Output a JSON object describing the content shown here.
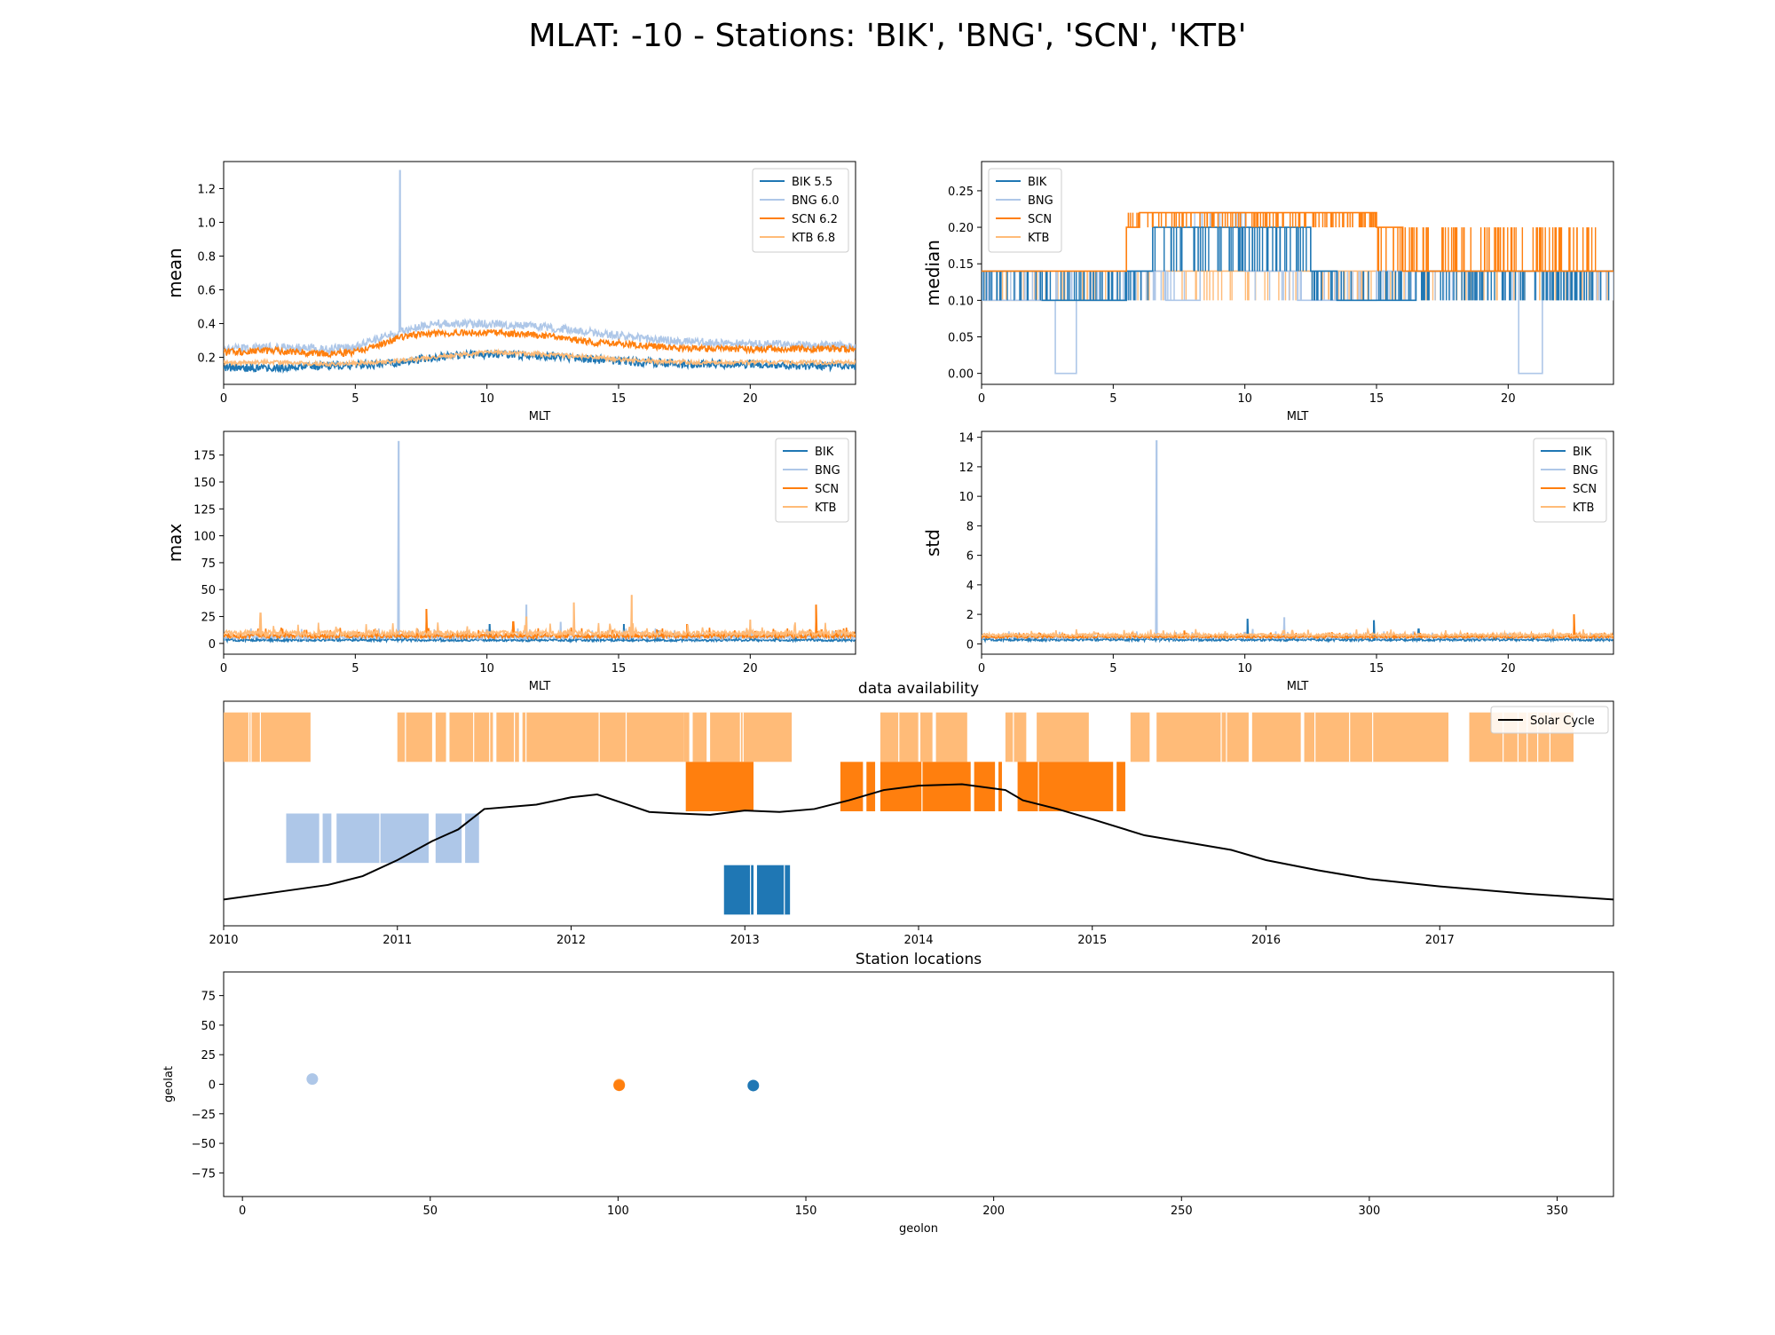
{
  "figure": {
    "title": "MLAT: -10 - Stations: 'BIK', 'BNG', 'SCN', 'KTB'"
  },
  "colors": {
    "BIK": "#1f77b4",
    "BNG": "#aec7e8",
    "SCN": "#ff7f0e",
    "KTB": "#ffbb78",
    "solar": "#000000"
  },
  "chart_data": [
    {
      "id": "mean",
      "type": "line",
      "title": "",
      "xlabel": "MLT",
      "ylabel": "mean",
      "xlim": [
        0,
        24
      ],
      "ylim": [
        0.04,
        1.36
      ],
      "xticks": [
        0,
        5,
        10,
        15,
        20
      ],
      "yticks": [
        0.2,
        0.4,
        0.6,
        0.8,
        1.0,
        1.2
      ],
      "ytick_labels": [
        "0.2",
        "0.4",
        "0.6",
        "0.8",
        "1.0",
        "1.2"
      ],
      "legend": "top-right",
      "legend_entries": [
        "BIK 5.5",
        "BNG 6.0",
        "SCN 6.2",
        "KTB 6.8"
      ],
      "series": [
        {
          "name": "BIK",
          "x": [
            0,
            2,
            4,
            6,
            8,
            10,
            12,
            14,
            16,
            18,
            20,
            22,
            24
          ],
          "values": [
            0.14,
            0.14,
            0.15,
            0.16,
            0.2,
            0.22,
            0.21,
            0.19,
            0.17,
            0.16,
            0.16,
            0.15,
            0.15
          ],
          "noise": 0.025
        },
        {
          "name": "BNG",
          "x": [
            0,
            2,
            4,
            5,
            6,
            7,
            8,
            10,
            12,
            14,
            16,
            18,
            20,
            22,
            24
          ],
          "values": [
            0.25,
            0.26,
            0.25,
            0.26,
            0.32,
            0.36,
            0.4,
            0.4,
            0.38,
            0.35,
            0.31,
            0.29,
            0.28,
            0.27,
            0.27
          ],
          "noise": 0.025,
          "spikes": [
            [
              6.7,
              1.31
            ]
          ]
        },
        {
          "name": "SCN",
          "x": [
            0,
            2,
            4,
            5,
            6,
            7,
            8,
            10,
            12,
            14,
            16,
            18,
            20,
            22,
            24
          ],
          "values": [
            0.23,
            0.24,
            0.22,
            0.23,
            0.28,
            0.33,
            0.34,
            0.35,
            0.33,
            0.29,
            0.27,
            0.25,
            0.25,
            0.25,
            0.25
          ],
          "noise": 0.02
        },
        {
          "name": "KTB",
          "x": [
            0,
            2,
            4,
            6,
            8,
            10,
            12,
            14,
            16,
            18,
            20,
            22,
            24
          ],
          "values": [
            0.17,
            0.17,
            0.16,
            0.17,
            0.2,
            0.23,
            0.22,
            0.2,
            0.18,
            0.17,
            0.17,
            0.17,
            0.17
          ],
          "noise": 0.012
        }
      ]
    },
    {
      "id": "median",
      "type": "line",
      "title": "",
      "xlabel": "MLT",
      "ylabel": "median",
      "xlim": [
        0,
        24
      ],
      "ylim": [
        -0.015,
        0.29
      ],
      "xticks": [
        0,
        5,
        10,
        15,
        20
      ],
      "yticks": [
        0.0,
        0.05,
        0.1,
        0.15,
        0.2,
        0.25
      ],
      "ytick_labels": [
        "0.00",
        "0.05",
        "0.10",
        "0.15",
        "0.20",
        "0.25"
      ],
      "legend": "top-left",
      "legend_entries": [
        "BIK",
        "BNG",
        "SCN",
        "KTB"
      ],
      "series": [
        {
          "name": "KTB",
          "segments": [
            [
              0,
              0.1
            ],
            [
              2.5,
              0.1
            ],
            [
              5.5,
              0.14
            ],
            [
              24,
              0.1
            ]
          ]
        },
        {
          "name": "BNG",
          "segments": [
            [
              0,
              0.1
            ],
            [
              2.8,
              0.0
            ],
            [
              3.6,
              0.1
            ],
            [
              5.5,
              0.14
            ],
            [
              7.0,
              0.1
            ],
            [
              8.3,
              0.22
            ],
            [
              10.0,
              0.14
            ],
            [
              12.0,
              0.1
            ],
            [
              15.0,
              0.14
            ],
            [
              20.4,
              0.0
            ],
            [
              21.3,
              0.14
            ]
          ]
        },
        {
          "name": "BIK",
          "segments": [
            [
              0,
              0.14
            ],
            [
              2.3,
              0.1
            ],
            [
              5.5,
              0.14
            ],
            [
              6.5,
              0.2
            ],
            [
              12.5,
              0.14
            ],
            [
              13.5,
              0.1
            ],
            [
              16.5,
              0.14
            ],
            [
              24,
              0.14
            ]
          ]
        },
        {
          "name": "SCN",
          "segments": [
            [
              0,
              0.14
            ],
            [
              5.5,
              0.2
            ],
            [
              6.0,
              0.22
            ],
            [
              15.0,
              0.2
            ],
            [
              16.0,
              0.14
            ],
            [
              24,
              0.14
            ]
          ]
        }
      ]
    },
    {
      "id": "max",
      "type": "line",
      "title": "",
      "xlabel": "MLT",
      "ylabel": "max",
      "xlim": [
        0,
        24
      ],
      "ylim": [
        -10,
        197
      ],
      "xticks": [
        0,
        5,
        10,
        15,
        20
      ],
      "yticks": [
        0,
        25,
        50,
        75,
        100,
        125,
        150,
        175
      ],
      "ytick_labels": [
        "0",
        "25",
        "50",
        "75",
        "100",
        "125",
        "150",
        "175"
      ],
      "legend": "top-right",
      "legend_entries": [
        "BIK",
        "BNG",
        "SCN",
        "KTB"
      ],
      "series": [
        {
          "name": "BIK",
          "base": 2,
          "noise": 2,
          "spikes": [
            [
              10.1,
              18
            ],
            [
              15.2,
              18
            ],
            [
              16.5,
              12
            ]
          ]
        },
        {
          "name": "BNG",
          "base": 4,
          "noise": 4,
          "spikes": [
            [
              6.65,
              188
            ],
            [
              11.5,
              36
            ],
            [
              12.8,
              20
            ]
          ]
        },
        {
          "name": "SCN",
          "base": 5,
          "noise": 4,
          "spikes": [
            [
              7.7,
              32
            ],
            [
              11.0,
              20
            ],
            [
              15.5,
              22
            ],
            [
              17.6,
              18
            ],
            [
              22.5,
              36
            ]
          ]
        },
        {
          "name": "KTB",
          "base": 7,
          "noise": 5,
          "spikes": [
            [
              1.4,
              28
            ],
            [
              13.3,
              38
            ],
            [
              15.5,
              45
            ],
            [
              11.5,
              25
            ],
            [
              20.0,
              22
            ]
          ]
        }
      ]
    },
    {
      "id": "std",
      "type": "line",
      "title": "",
      "xlabel": "MLT",
      "ylabel": "std",
      "xlim": [
        0,
        24
      ],
      "ylim": [
        -0.7,
        14.4
      ],
      "xticks": [
        0,
        5,
        10,
        15,
        20
      ],
      "yticks": [
        0,
        2,
        4,
        6,
        8,
        10,
        12,
        14
      ],
      "ytick_labels": [
        "0",
        "2",
        "4",
        "6",
        "8",
        "10",
        "12",
        "14"
      ],
      "legend": "top-right",
      "legend_entries": [
        "BIK",
        "BNG",
        "SCN",
        "KTB"
      ],
      "series": [
        {
          "name": "BIK",
          "base": 0.2,
          "noise": 0.15,
          "spikes": [
            [
              10.1,
              1.7
            ],
            [
              14.9,
              1.6
            ],
            [
              16.6,
              1.0
            ]
          ]
        },
        {
          "name": "BNG",
          "base": 0.35,
          "noise": 0.2,
          "spikes": [
            [
              6.65,
              13.8
            ],
            [
              11.5,
              1.8
            ],
            [
              10.3,
              1.0
            ]
          ]
        },
        {
          "name": "SCN",
          "base": 0.4,
          "noise": 0.15,
          "spikes": [
            [
              22.5,
              2.0
            ],
            [
              7.7,
              0.9
            ],
            [
              13.3,
              0.8
            ]
          ]
        },
        {
          "name": "KTB",
          "base": 0.5,
          "noise": 0.2,
          "spikes": [
            [
              6.9,
              0.9
            ],
            [
              11.8,
              0.9
            ]
          ]
        }
      ]
    },
    {
      "id": "availability",
      "type": "bar",
      "title": "data availability",
      "xlabel": "",
      "ylabel": "",
      "xlim": [
        2010.0,
        2018.0
      ],
      "xticks": [
        2010,
        2011,
        2012,
        2013,
        2014,
        2015,
        2016,
        2017
      ],
      "legend": "top-right",
      "legend_entries": [
        "Solar Cycle"
      ],
      "rows": [
        {
          "name": "KTB",
          "intervals": [
            [
              2010.0,
              2010.5
            ],
            [
              2011.0,
              2011.2
            ],
            [
              2011.22,
              2011.28
            ],
            [
              2011.3,
              2011.55
            ],
            [
              2011.57,
              2011.7
            ],
            [
              2011.72,
              2012.65
            ],
            [
              2012.65,
              2012.68
            ],
            [
              2012.7,
              2012.78
            ],
            [
              2012.8,
              2013.27
            ],
            [
              2013.78,
              2014.08
            ],
            [
              2014.1,
              2014.28
            ],
            [
              2014.5,
              2014.62
            ],
            [
              2014.68,
              2014.98
            ],
            [
              2015.22,
              2015.33
            ],
            [
              2015.37,
              2015.9
            ],
            [
              2015.92,
              2016.2
            ],
            [
              2016.22,
              2017.05
            ],
            [
              2017.17,
              2017.77
            ]
          ]
        },
        {
          "name": "SCN",
          "intervals": [
            [
              2012.66,
              2013.05
            ],
            [
              2013.55,
              2013.68
            ],
            [
              2013.7,
              2013.75
            ],
            [
              2013.78,
              2014.3
            ],
            [
              2014.32,
              2014.44
            ],
            [
              2014.46,
              2014.48
            ],
            [
              2014.57,
              2015.12
            ],
            [
              2015.14,
              2015.19
            ]
          ]
        },
        {
          "name": "BNG",
          "intervals": [
            [
              2010.36,
              2010.55
            ],
            [
              2010.57,
              2010.62
            ],
            [
              2010.65,
              2011.18
            ],
            [
              2011.22,
              2011.37
            ],
            [
              2011.39,
              2011.47
            ]
          ]
        },
        {
          "name": "BIK",
          "intervals": [
            [
              2012.88,
              2013.05
            ],
            [
              2013.07,
              2013.26
            ]
          ]
        }
      ],
      "solar_cycle": {
        "name": "Solar Cycle",
        "x": [
          2010.0,
          2010.3,
          2010.6,
          2010.8,
          2011.0,
          2011.2,
          2011.35,
          2011.5,
          2011.8,
          2012.0,
          2012.15,
          2012.3,
          2012.45,
          2012.6,
          2012.8,
          2013.0,
          2013.2,
          2013.4,
          2013.6,
          2013.8,
          2014.0,
          2014.25,
          2014.5,
          2014.6,
          2014.8,
          2015.0,
          2015.3,
          2015.6,
          2015.8,
          2016.0,
          2016.3,
          2016.6,
          2017.0,
          2017.5,
          2018.0
        ],
        "values": [
          18,
          23,
          28,
          34,
          45,
          58,
          66,
          80,
          83,
          88,
          90,
          84,
          78,
          77,
          76,
          79,
          78,
          80,
          86,
          93,
          96,
          97,
          93,
          86,
          80,
          73,
          62,
          56,
          52,
          45,
          38,
          32,
          27,
          22,
          18
        ]
      }
    },
    {
      "id": "locations",
      "type": "scatter",
      "title": "Station locations",
      "xlabel": "geolon",
      "ylabel": "geolat",
      "xlim": [
        -5,
        365
      ],
      "ylim": [
        -95,
        95
      ],
      "xticks": [
        0,
        50,
        100,
        150,
        200,
        250,
        300,
        350
      ],
      "yticks": [
        -75,
        -50,
        -25,
        0,
        25,
        50,
        75
      ],
      "ytick_labels": [
        "−75",
        "−50",
        "−25",
        "0",
        "25",
        "50",
        "75"
      ],
      "points": [
        {
          "name": "BNG",
          "x": 18.6,
          "y": 4.4
        },
        {
          "name": "KTB",
          "x": 100.3,
          "y": -0.2
        },
        {
          "name": "SCN",
          "x": 100.3,
          "y": -0.9
        },
        {
          "name": "BIK",
          "x": 136.0,
          "y": -1.1
        }
      ]
    }
  ]
}
